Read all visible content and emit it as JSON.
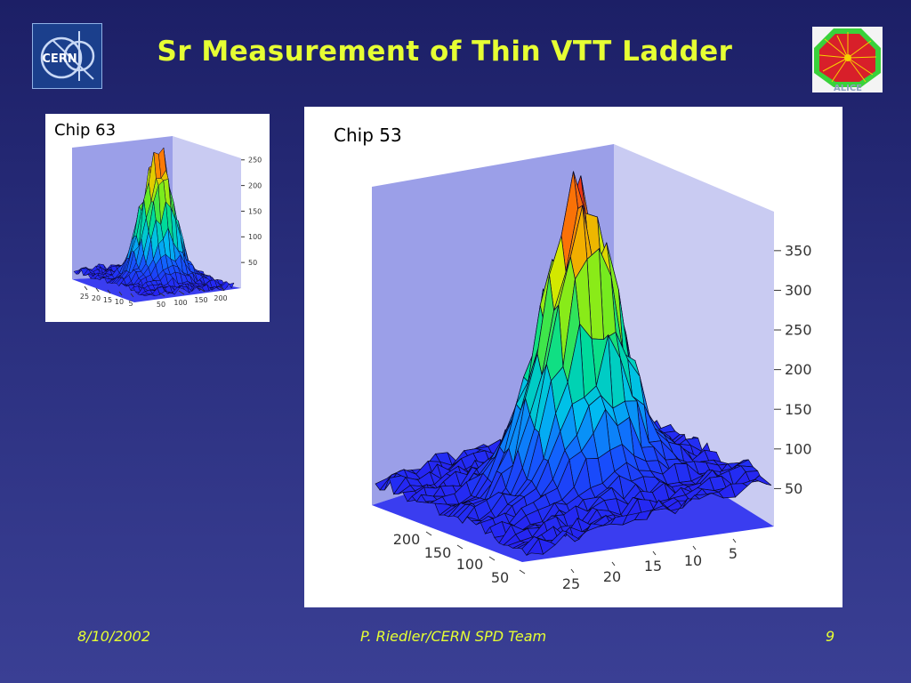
{
  "slide": {
    "title": "Sr Measurement of Thin VTT Ladder",
    "cern_logo_text": "CERN",
    "alice_logo_text": "ALICE",
    "footer": {
      "date": "8/10/2002",
      "author": "P. Riedler/CERN SPD Team",
      "page": "9"
    }
  },
  "colors": {
    "background": "#2a2f7e",
    "title": "#e6ff33",
    "footer": "#e6ff33",
    "surface_low": "#1a2cff",
    "surface_high": "#ff4a1a"
  },
  "chart_data": [
    {
      "type": "surface",
      "label": "Chip 63",
      "z_ticks": [
        50,
        100,
        150,
        200,
        250
      ],
      "x_ticks": [
        50,
        100,
        150,
        200
      ],
      "y_ticks": [
        25,
        20,
        15,
        10,
        5
      ],
      "z_peak": 260,
      "grid": false
    },
    {
      "type": "surface",
      "label": "Chip 53",
      "z_ticks": [
        50,
        100,
        150,
        200,
        250,
        300,
        350
      ],
      "x_ticks": [
        200,
        150,
        100,
        50
      ],
      "y_ticks": [
        25,
        20,
        15,
        10,
        5
      ],
      "z_peak": 370,
      "grid": false
    }
  ]
}
